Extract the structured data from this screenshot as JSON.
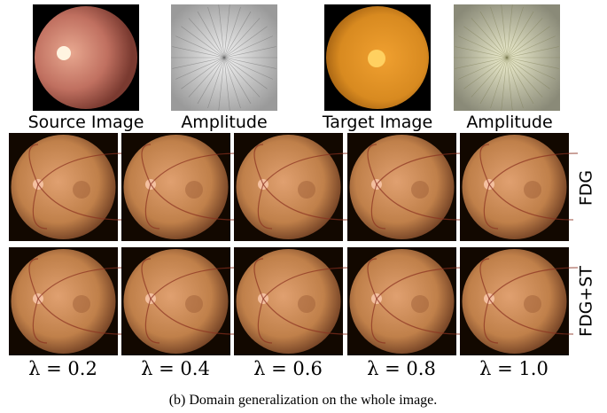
{
  "top_row": {
    "labels": [
      "Source Image",
      "Amplitude",
      "Target Image",
      "Amplitude"
    ]
  },
  "rows": [
    {
      "label": "FDG"
    },
    {
      "label": "FDG+ST"
    }
  ],
  "columns": [
    "λ = 0.2",
    "λ = 0.4",
    "λ = 0.6",
    "λ = 0.8",
    "λ = 1.0"
  ],
  "caption": "(b) Domain generalization on the whole image."
}
